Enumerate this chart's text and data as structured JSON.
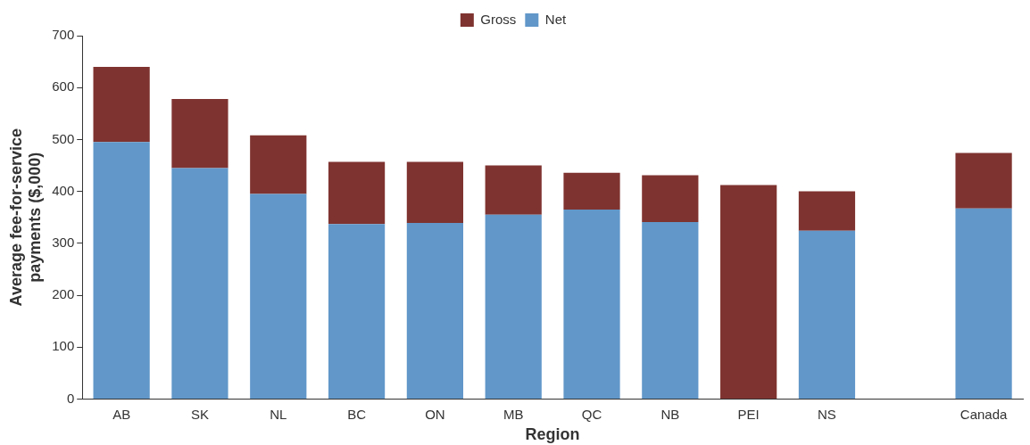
{
  "chart_data": {
    "type": "bar",
    "stacked": true,
    "categories": [
      "AB",
      "SK",
      "NL",
      "BC",
      "ON",
      "MB",
      "QC",
      "NB",
      "PEI",
      "NS",
      null,
      "Canada"
    ],
    "series": [
      {
        "name": "Net",
        "color": "#6197c9",
        "values": [
          495,
          445,
          395,
          337,
          339,
          355,
          365,
          341,
          null,
          324,
          null,
          367
        ]
      },
      {
        "name": "Gross",
        "color": "#7f3330",
        "values": [
          145,
          133,
          113,
          120,
          118,
          95,
          71,
          90,
          412,
          76,
          null,
          107
        ]
      }
    ],
    "xlabel": "Region",
    "ylabel": "Average fee-for-service payments ($,000)",
    "ylim": [
      0,
      700
    ],
    "yticks": [
      0,
      100,
      200,
      300,
      400,
      500,
      600,
      700
    ],
    "grid": false,
    "legend": "top"
  }
}
